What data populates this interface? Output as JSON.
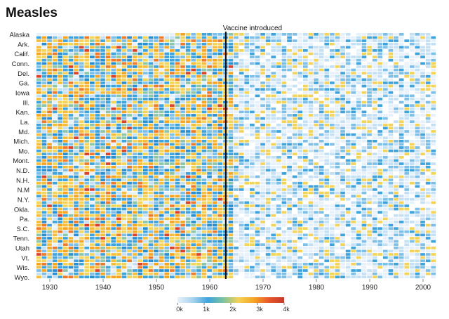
{
  "chart_data": {
    "type": "heatmap",
    "title": "Measles",
    "xlabel": "",
    "ylabel": "",
    "year_range": [
      1928,
      2002
    ],
    "x_ticks": [
      1930,
      1940,
      1950,
      1960,
      1970,
      1980,
      1990,
      2000
    ],
    "x_tick_labels": [
      "1930",
      "1940",
      "1950",
      "1960",
      "1970",
      "1980",
      "1990",
      "2000"
    ],
    "state_labels": [
      "Alaska",
      "Ark.",
      "Calif.",
      "Conn.",
      "Del.",
      "Ga.",
      "Iowa",
      "Ill.",
      "Kan.",
      "La.",
      "Md.",
      "Mich.",
      "Mo.",
      "Mont.",
      "N.D.",
      "N.H.",
      "N.M",
      "N.Y.",
      "Okla.",
      "Pa.",
      "S.C.",
      "Tenn.",
      "Utah",
      "Vt.",
      "Wis.",
      "Wyo."
    ],
    "rows_between_labels": 2,
    "annotation": {
      "year": 1963,
      "label": "Vaccine introduced"
    },
    "color_scale": {
      "stops": [
        "#e6f1fb",
        "#a9d3ee",
        "#3fa3dc",
        "#7cc2a0",
        "#f3d157",
        "#f5a623",
        "#e8572a",
        "#c43a2c"
      ],
      "domain": [
        0,
        4000
      ],
      "legend_ticks": [
        0,
        1000,
        2000,
        3000,
        4000
      ],
      "legend_labels": [
        "0k",
        "1k",
        "2k",
        "3k",
        "4k"
      ]
    },
    "grid": false,
    "legend_position": "bottom-center"
  }
}
